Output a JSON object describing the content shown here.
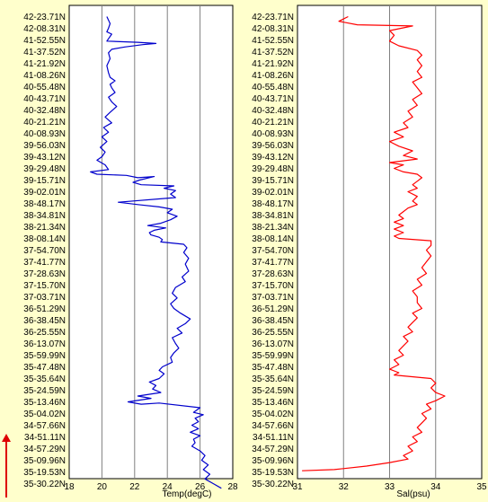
{
  "colors": {
    "background": "#ffffcc",
    "plot_bg": "#ffffff",
    "grid": "#808080",
    "temp_line": "#0000cc",
    "sal_line": "#ff0000",
    "arrow": "#dd0000"
  },
  "chart_data": [
    {
      "type": "line",
      "title": "",
      "xlabel": "Temp(degC)",
      "ylabel": "",
      "xlim": [
        18,
        28
      ],
      "x_ticks": [
        18,
        20,
        22,
        24,
        26,
        28
      ],
      "grid": true,
      "series": [
        {
          "values": [
            [
              20.3,
              0
            ],
            [
              20.4,
              0.3
            ],
            [
              20.5,
              0.6
            ],
            [
              20.4,
              1.0
            ],
            [
              20.3,
              1.3
            ],
            [
              20.6,
              1.5
            ],
            [
              20.4,
              1.9
            ],
            [
              20.3,
              2.1
            ],
            [
              22.2,
              2.2
            ],
            [
              23.3,
              2.3
            ],
            [
              22.5,
              2.4
            ],
            [
              21.4,
              2.6
            ],
            [
              20.6,
              2.8
            ],
            [
              20.4,
              3.1
            ],
            [
              20.5,
              3.6
            ],
            [
              20.3,
              4.2
            ],
            [
              20.4,
              4.8
            ],
            [
              20.5,
              5.2
            ],
            [
              20.8,
              5.5
            ],
            [
              20.5,
              5.8
            ],
            [
              20.6,
              6.1
            ],
            [
              20.8,
              6.5
            ],
            [
              20.4,
              6.9
            ],
            [
              20.6,
              7.3
            ],
            [
              20.9,
              7.7
            ],
            [
              20.5,
              8.2
            ],
            [
              20.2,
              8.6
            ],
            [
              20.6,
              9.1
            ],
            [
              20.1,
              9.5
            ],
            [
              20.4,
              9.9
            ],
            [
              20.0,
              10.3
            ],
            [
              20.3,
              10.7
            ],
            [
              19.9,
              11.2
            ],
            [
              20.2,
              11.6
            ],
            [
              20.0,
              12.0
            ],
            [
              19.7,
              12.3
            ],
            [
              20.2,
              12.7
            ],
            [
              20.4,
              13.1
            ],
            [
              19.3,
              13.3
            ],
            [
              19.7,
              13.5
            ],
            [
              21.5,
              13.6
            ],
            [
              22.2,
              13.8
            ],
            [
              23.2,
              13.7
            ],
            [
              22.3,
              14.0
            ],
            [
              21.9,
              14.2
            ],
            [
              22.4,
              14.4
            ],
            [
              24.4,
              14.5
            ],
            [
              23.8,
              14.7
            ],
            [
              24.5,
              14.9
            ],
            [
              24.2,
              15.2
            ],
            [
              24.5,
              15.5
            ],
            [
              21.0,
              15.9
            ],
            [
              22.2,
              16.1
            ],
            [
              23.5,
              16.3
            ],
            [
              24.3,
              16.5
            ],
            [
              24.0,
              16.8
            ],
            [
              24.6,
              17.1
            ],
            [
              24.2,
              17.4
            ],
            [
              23.6,
              17.7
            ],
            [
              22.8,
              17.9
            ],
            [
              23.9,
              18.1
            ],
            [
              23.2,
              18.3
            ],
            [
              22.9,
              18.5
            ],
            [
              23.0,
              18.7
            ],
            [
              23.5,
              18.9
            ],
            [
              23.7,
              19.1
            ],
            [
              23.6,
              19.3
            ],
            [
              25.0,
              19.5
            ],
            [
              25.2,
              19.8
            ],
            [
              25.0,
              20.2
            ],
            [
              25.3,
              20.7
            ],
            [
              25.1,
              21.2
            ],
            [
              25.3,
              21.8
            ],
            [
              24.9,
              22.3
            ],
            [
              25.1,
              22.7
            ],
            [
              24.5,
              23.2
            ],
            [
              24.3,
              23.7
            ],
            [
              24.6,
              24.1
            ],
            [
              24.2,
              24.6
            ],
            [
              24.4,
              25.0
            ],
            [
              24.8,
              25.4
            ],
            [
              25.4,
              25.9
            ],
            [
              25.1,
              26.3
            ],
            [
              24.6,
              26.7
            ],
            [
              24.9,
              27.1
            ],
            [
              24.3,
              27.5
            ],
            [
              24.5,
              28.0
            ],
            [
              24.7,
              28.4
            ],
            [
              24.4,
              28.8
            ],
            [
              24.2,
              29.2
            ],
            [
              24.3,
              29.6
            ],
            [
              23.7,
              30.0
            ],
            [
              23.5,
              30.3
            ],
            [
              23.8,
              30.6
            ],
            [
              23.5,
              31.0
            ],
            [
              22.9,
              31.3
            ],
            [
              23.3,
              31.6
            ],
            [
              23.1,
              31.9
            ],
            [
              23.6,
              32.2
            ],
            [
              22.2,
              32.5
            ],
            [
              23.0,
              32.7
            ],
            [
              21.6,
              33.0
            ],
            [
              22.4,
              33.2
            ],
            [
              23.5,
              33.1
            ],
            [
              26.0,
              33.5
            ],
            [
              25.6,
              33.9
            ],
            [
              26.2,
              34.1
            ],
            [
              25.7,
              34.4
            ],
            [
              25.9,
              34.7
            ],
            [
              25.5,
              35.0
            ],
            [
              25.9,
              35.3
            ],
            [
              25.4,
              35.6
            ],
            [
              26.0,
              35.9
            ],
            [
              25.6,
              36.2
            ],
            [
              25.7,
              36.5
            ],
            [
              25.5,
              36.8
            ],
            [
              26.0,
              37.2
            ],
            [
              26.3,
              37.6
            ],
            [
              26.1,
              38.0
            ],
            [
              26.5,
              38.4
            ],
            [
              26.2,
              38.8
            ],
            [
              26.6,
              39.2
            ],
            [
              26.3,
              39.6
            ],
            [
              26.8,
              40.0
            ],
            [
              27.3,
              40.4
            ]
          ]
        }
      ]
    },
    {
      "type": "line",
      "title": "",
      "xlabel": "Sal(psu)",
      "ylabel": "",
      "xlim": [
        31,
        35
      ],
      "x_ticks": [
        31,
        32,
        33,
        34,
        35
      ],
      "grid": true,
      "series": [
        {
          "values": [
            [
              32.1,
              0
            ],
            [
              31.9,
              0.4
            ],
            [
              32.3,
              0.7
            ],
            [
              33.5,
              0.8
            ],
            [
              33.0,
              1.2
            ],
            [
              33.1,
              1.6
            ],
            [
              33.0,
              2.1
            ],
            [
              33.2,
              2.5
            ],
            [
              33.6,
              2.9
            ],
            [
              33.7,
              3.3
            ],
            [
              33.6,
              3.7
            ],
            [
              33.7,
              4.2
            ],
            [
              33.6,
              4.7
            ],
            [
              33.7,
              5.2
            ],
            [
              33.5,
              5.6
            ],
            [
              33.6,
              6.1
            ],
            [
              33.7,
              6.6
            ],
            [
              33.5,
              7.1
            ],
            [
              33.6,
              7.6
            ],
            [
              33.4,
              8.1
            ],
            [
              33.5,
              8.6
            ],
            [
              33.3,
              9.1
            ],
            [
              33.4,
              9.5
            ],
            [
              33.1,
              9.9
            ],
            [
              33.3,
              10.3
            ],
            [
              33.0,
              10.7
            ],
            [
              33.2,
              11.1
            ],
            [
              33.5,
              11.5
            ],
            [
              33.3,
              11.9
            ],
            [
              33.6,
              12.2
            ],
            [
              33.0,
              12.5
            ],
            [
              33.3,
              12.7
            ],
            [
              33.1,
              13.0
            ],
            [
              33.3,
              13.3
            ],
            [
              33.6,
              13.5
            ],
            [
              33.7,
              13.8
            ],
            [
              33.6,
              14.1
            ],
            [
              33.5,
              14.4
            ],
            [
              33.6,
              14.7
            ],
            [
              33.4,
              15.0
            ],
            [
              33.6,
              15.4
            ],
            [
              33.5,
              15.8
            ],
            [
              33.6,
              16.1
            ],
            [
              33.4,
              16.4
            ],
            [
              33.3,
              16.7
            ],
            [
              33.2,
              17.0
            ],
            [
              33.3,
              17.3
            ],
            [
              33.1,
              17.6
            ],
            [
              33.3,
              17.9
            ],
            [
              33.1,
              18.2
            ],
            [
              33.3,
              18.5
            ],
            [
              33.1,
              18.8
            ],
            [
              33.2,
              19.0
            ],
            [
              33.9,
              19.2
            ],
            [
              33.9,
              19.6
            ],
            [
              33.8,
              20.0
            ],
            [
              33.9,
              20.5
            ],
            [
              33.8,
              21.0
            ],
            [
              33.7,
              21.5
            ],
            [
              33.8,
              22.0
            ],
            [
              33.6,
              22.5
            ],
            [
              33.7,
              23.0
            ],
            [
              33.5,
              23.5
            ],
            [
              33.6,
              24.0
            ],
            [
              33.6,
              24.5
            ],
            [
              33.7,
              25.0
            ],
            [
              33.5,
              25.4
            ],
            [
              33.6,
              25.8
            ],
            [
              33.5,
              26.2
            ],
            [
              33.4,
              26.6
            ],
            [
              33.5,
              27.0
            ],
            [
              33.3,
              27.4
            ],
            [
              33.4,
              27.8
            ],
            [
              33.3,
              28.2
            ],
            [
              33.2,
              28.6
            ],
            [
              33.3,
              29.0
            ],
            [
              33.1,
              29.4
            ],
            [
              33.2,
              29.8
            ],
            [
              33.0,
              30.2
            ],
            [
              33.2,
              30.5
            ],
            [
              33.1,
              30.7
            ],
            [
              33.9,
              31.0
            ],
            [
              34.0,
              31.4
            ],
            [
              33.9,
              31.8
            ],
            [
              34.0,
              32.2
            ],
            [
              34.2,
              32.5
            ],
            [
              34.0,
              32.9
            ],
            [
              33.8,
              33.2
            ],
            [
              33.9,
              33.6
            ],
            [
              33.7,
              34.0
            ],
            [
              33.8,
              34.4
            ],
            [
              33.7,
              34.8
            ],
            [
              33.6,
              35.2
            ],
            [
              33.7,
              35.6
            ],
            [
              33.5,
              36.0
            ],
            [
              33.6,
              36.4
            ],
            [
              33.4,
              36.8
            ],
            [
              33.5,
              37.2
            ],
            [
              33.3,
              37.6
            ],
            [
              33.4,
              37.9
            ],
            [
              33.0,
              38.2
            ],
            [
              32.5,
              38.5
            ],
            [
              31.8,
              38.8
            ],
            [
              31.1,
              38.9
            ]
          ]
        }
      ]
    }
  ],
  "y_labels": [
    "42-23.71N",
    "42-08.31N",
    "41-52.55N",
    "41-37.52N",
    "41-21.92N",
    "41-08.26N",
    "40-55.48N",
    "40-43.71N",
    "40-32.48N",
    "40-21.21N",
    "40-08.93N",
    "39-56.03N",
    "39-43.12N",
    "39-29.48N",
    "39-15.71N",
    "39-02.01N",
    "38-48.17N",
    "38-34.81N",
    "38-21.34N",
    "38-08.14N",
    "37-54.70N",
    "37-41.77N",
    "37-28.63N",
    "37-15.70N",
    "37-03.71N",
    "36-51.29N",
    "36-38.45N",
    "36-25.55N",
    "36-13.07N",
    "35-59.99N",
    "35-47.48N",
    "35-35.64N",
    "35-24.59N",
    "35-13.46N",
    "35-04.02N",
    "34-57.66N",
    "34-51.11N",
    "34-57.29N",
    "35-09.96N",
    "35-19.53N",
    "35-30.22N"
  ]
}
